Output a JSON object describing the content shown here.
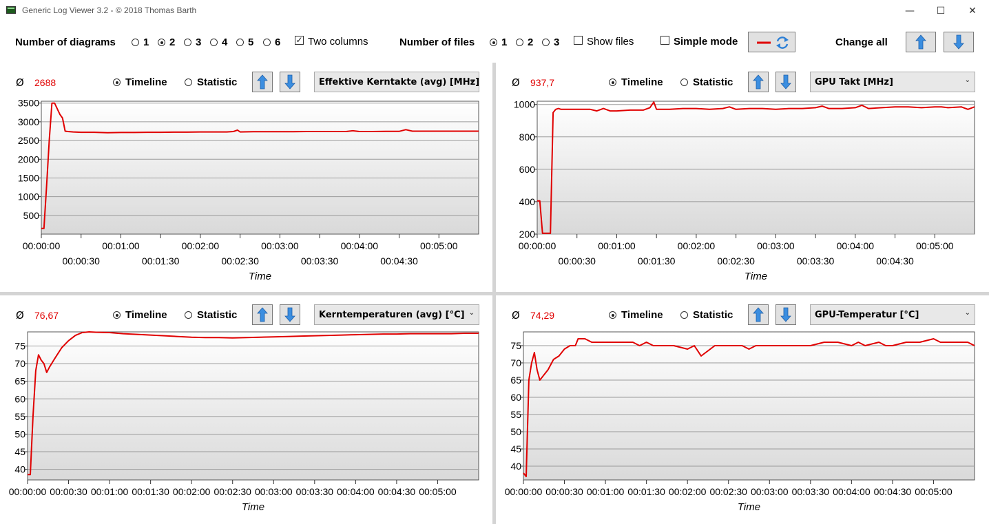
{
  "window": {
    "title": "Generic Log Viewer 3.2 - © 2018 Thomas Barth",
    "minimize": "—",
    "maximize": "☐",
    "close": "✕"
  },
  "toolbar": {
    "diagrams_label": "Number of diagrams",
    "diagram_options": [
      "1",
      "2",
      "3",
      "4",
      "5",
      "6"
    ],
    "diagram_selected": "2",
    "two_columns_label": "Two columns",
    "two_columns_checked": true,
    "files_label": "Number of files",
    "file_options": [
      "1",
      "2",
      "3"
    ],
    "file_selected": "1",
    "show_files_label": "Show files",
    "show_files_checked": false,
    "simple_mode_label": "Simple mode",
    "simple_mode_checked": false,
    "change_all_label": "Change all"
  },
  "panels": [
    {
      "avg_symbol": "Ø",
      "avg_value": "2688",
      "timeline_label": "Timeline",
      "statistic_label": "Statistic",
      "mode_selected": "Timeline",
      "sensor": "Effektive Kerntakte (avg) [MHz]"
    },
    {
      "avg_symbol": "Ø",
      "avg_value": "937,7",
      "timeline_label": "Timeline",
      "statistic_label": "Statistic",
      "mode_selected": "Timeline",
      "sensor": "GPU Takt [MHz]"
    },
    {
      "avg_symbol": "Ø",
      "avg_value": "76,67",
      "timeline_label": "Timeline",
      "statistic_label": "Statistic",
      "mode_selected": "Timeline",
      "sensor": "Kerntemperaturen (avg) [°C]"
    },
    {
      "avg_symbol": "Ø",
      "avg_value": "74,29",
      "timeline_label": "Timeline",
      "statistic_label": "Statistic",
      "mode_selected": "Timeline",
      "sensor": "GPU-Temperatur [°C]"
    }
  ],
  "colors": {
    "series": "#e00000",
    "grid": "#9a9a9a",
    "plot_top": "#ffffff",
    "plot_bottom": "#d9d9d9",
    "button_arrow": "#2b7fd6"
  },
  "chart_data": [
    {
      "type": "line",
      "xlabel": "Time",
      "ylabel": "",
      "x_unit": "seconds",
      "xlim": [
        0,
        330
      ],
      "ylim": [
        0,
        3550
      ],
      "yticks": [
        500,
        1000,
        1500,
        2000,
        2500,
        3000,
        3500
      ],
      "xtick_labels_top": [
        "00:00:00",
        "00:01:00",
        "00:02:00",
        "00:03:00",
        "00:04:00",
        "00:05:00"
      ],
      "xtick_labels_bottom": [
        "00:00:30",
        "00:01:30",
        "00:02:30",
        "00:03:30",
        "00:04:30"
      ],
      "xtick_layout": "two-rows",
      "grid": true,
      "series": [
        {
          "x": [
            0,
            2,
            4,
            6,
            8,
            10,
            12,
            14,
            16,
            18,
            20,
            24,
            30,
            40,
            50,
            60,
            70,
            80,
            90,
            100,
            110,
            120,
            130,
            140,
            145,
            148,
            150,
            160,
            170,
            180,
            190,
            200,
            210,
            220,
            230,
            235,
            240,
            250,
            260,
            270,
            275,
            280,
            290,
            300,
            310,
            320,
            330
          ],
          "y": [
            150,
            150,
            1300,
            2500,
            3500,
            3500,
            3350,
            3200,
            3100,
            2750,
            2740,
            2730,
            2720,
            2720,
            2710,
            2715,
            2715,
            2720,
            2720,
            2725,
            2725,
            2730,
            2730,
            2730,
            2740,
            2780,
            2730,
            2735,
            2735,
            2735,
            2735,
            2740,
            2740,
            2740,
            2740,
            2760,
            2740,
            2740,
            2745,
            2745,
            2790,
            2750,
            2750,
            2750,
            2750,
            2750,
            2750
          ]
        }
      ]
    },
    {
      "type": "line",
      "xlabel": "Time",
      "ylabel": "",
      "x_unit": "seconds",
      "xlim": [
        0,
        330
      ],
      "ylim": [
        200,
        1020
      ],
      "yticks": [
        200,
        400,
        600,
        800,
        1000
      ],
      "xtick_labels_top": [
        "00:00:00",
        "00:01:00",
        "00:02:00",
        "00:03:00",
        "00:04:00",
        "00:05:00"
      ],
      "xtick_labels_bottom": [
        "00:00:30",
        "00:01:30",
        "00:02:30",
        "00:03:30",
        "00:04:30"
      ],
      "xtick_layout": "two-rows",
      "grid": true,
      "series": [
        {
          "x": [
            0,
            2,
            4,
            6,
            10,
            12,
            14,
            16,
            18,
            20,
            30,
            40,
            45,
            50,
            55,
            60,
            70,
            80,
            85,
            88,
            90,
            100,
            110,
            120,
            130,
            140,
            145,
            150,
            160,
            170,
            180,
            190,
            200,
            210,
            215,
            220,
            230,
            240,
            245,
            250,
            260,
            270,
            280,
            290,
            300,
            305,
            310,
            320,
            325,
            330
          ],
          "y": [
            405,
            405,
            205,
            205,
            205,
            950,
            970,
            975,
            970,
            970,
            970,
            970,
            960,
            975,
            960,
            960,
            965,
            965,
            980,
            1015,
            970,
            970,
            975,
            975,
            970,
            975,
            985,
            970,
            975,
            975,
            970,
            975,
            975,
            980,
            990,
            975,
            975,
            980,
            995,
            975,
            980,
            985,
            985,
            980,
            985,
            985,
            980,
            985,
            970,
            985
          ]
        }
      ]
    },
    {
      "type": "line",
      "xlabel": "Time",
      "ylabel": "",
      "x_unit": "seconds",
      "xlim": [
        0,
        330
      ],
      "ylim": [
        37,
        79
      ],
      "yticks": [
        40,
        45,
        50,
        55,
        60,
        65,
        70,
        75
      ],
      "xtick_labels": [
        "00:00:00",
        "00:00:30",
        "00:01:00",
        "00:01:30",
        "00:02:00",
        "00:02:30",
        "00:03:00",
        "00:03:30",
        "00:04:00",
        "00:04:30",
        "00:05:00"
      ],
      "xtick_layout": "single-row",
      "grid": true,
      "series": [
        {
          "x": [
            0,
            2,
            4,
            6,
            8,
            10,
            12,
            14,
            16,
            20,
            25,
            30,
            35,
            40,
            45,
            50,
            60,
            70,
            80,
            90,
            100,
            110,
            120,
            130,
            140,
            150,
            160,
            170,
            180,
            190,
            200,
            210,
            220,
            230,
            240,
            250,
            260,
            270,
            280,
            290,
            300,
            310,
            320,
            330
          ],
          "y": [
            38.5,
            38.5,
            55,
            68,
            72.5,
            71,
            70,
            67.5,
            69,
            71.5,
            74.5,
            76.5,
            78,
            78.8,
            79,
            78.9,
            78.8,
            78.5,
            78.3,
            78.1,
            77.9,
            77.7,
            77.5,
            77.4,
            77.4,
            77.3,
            77.4,
            77.5,
            77.6,
            77.7,
            77.8,
            77.9,
            78,
            78.1,
            78.2,
            78.3,
            78.4,
            78.4,
            78.5,
            78.5,
            78.5,
            78.5,
            78.6,
            78.6
          ]
        }
      ]
    },
    {
      "type": "line",
      "xlabel": "Time",
      "ylabel": "",
      "x_unit": "seconds",
      "xlim": [
        0,
        330
      ],
      "ylim": [
        36,
        79
      ],
      "yticks": [
        40,
        45,
        50,
        55,
        60,
        65,
        70,
        75
      ],
      "xtick_labels": [
        "00:00:00",
        "00:00:30",
        "00:01:00",
        "00:01:30",
        "00:02:00",
        "00:02:30",
        "00:03:00",
        "00:03:30",
        "00:04:00",
        "00:04:30",
        "00:05:00"
      ],
      "xtick_layout": "single-row",
      "grid": true,
      "series": [
        {
          "x": [
            0,
            2,
            4,
            6,
            8,
            10,
            12,
            14,
            18,
            22,
            26,
            30,
            34,
            38,
            40,
            45,
            50,
            55,
            60,
            70,
            80,
            85,
            90,
            95,
            100,
            110,
            120,
            125,
            130,
            140,
            145,
            150,
            160,
            165,
            170,
            180,
            190,
            200,
            210,
            220,
            230,
            240,
            245,
            250,
            260,
            265,
            270,
            280,
            290,
            300,
            305,
            310,
            320,
            325,
            330
          ],
          "y": [
            38,
            37,
            65,
            70,
            73,
            68,
            65,
            66,
            68,
            71,
            72,
            74,
            75,
            75,
            77,
            77,
            76,
            76,
            76,
            76,
            76,
            75,
            76,
            75,
            75,
            75,
            74,
            75,
            72,
            75,
            75,
            75,
            75,
            74,
            75,
            75,
            75,
            75,
            75,
            76,
            76,
            75,
            76,
            75,
            76,
            75,
            75,
            76,
            76,
            77,
            76,
            76,
            76,
            76,
            75
          ]
        }
      ]
    }
  ]
}
